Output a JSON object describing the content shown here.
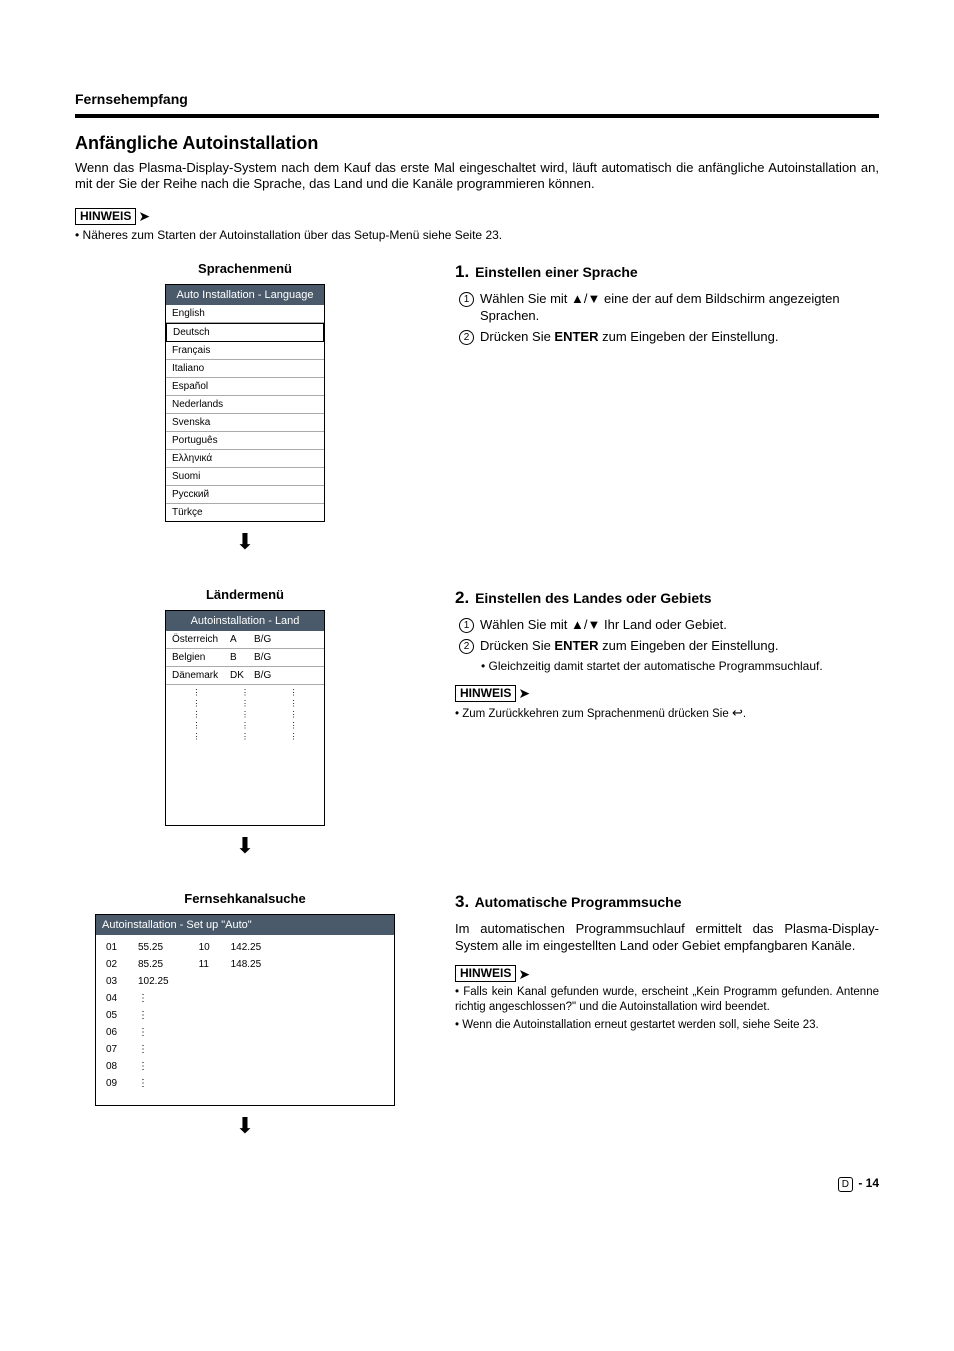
{
  "header": {
    "section": "Fernsehempfang",
    "title": "Anfängliche Autoinstallation",
    "intro": "Wenn das Plasma-Display-System nach dem Kauf das erste Mal eingeschaltet wird, läuft automatisch die anfängliche Autoinstallation an, mit der Sie der Reihe nach die Sprache, das Land und die Kanäle programmieren können."
  },
  "hinweis_label": "HINWEIS",
  "top_note": "• Näheres zum Starten der Autoinstallation über das Setup-Menü siehe Seite 23.",
  "language_menu": {
    "title": "Sprachenmenü",
    "header": "Auto Installation - Language",
    "items": [
      "English",
      "Deutsch",
      "Français",
      "Italiano",
      "Español",
      "Nederlands",
      "Svenska",
      "Português",
      "Ελληνικά",
      "Suomi",
      "Русский",
      "Türkçe"
    ],
    "selected_index": 1
  },
  "country_menu": {
    "title": "Ländermenü",
    "header": "Autoinstallation - Land",
    "rows": [
      {
        "name": "Österreich",
        "code": "A",
        "sys": "B/G"
      },
      {
        "name": "Belgien",
        "code": "B",
        "sys": "B/G"
      },
      {
        "name": "Dänemark",
        "code": "DK",
        "sys": "B/G"
      }
    ]
  },
  "channel_search": {
    "title": "Fernsehkanalsuche",
    "header": "Autoinstallation - Set up \"Auto\"",
    "col1": [
      {
        "ch": "01",
        "freq": "55.25"
      },
      {
        "ch": "02",
        "freq": "85.25"
      },
      {
        "ch": "03",
        "freq": "102.25"
      },
      {
        "ch": "04",
        "freq": ""
      },
      {
        "ch": "05",
        "freq": ""
      },
      {
        "ch": "06",
        "freq": ""
      },
      {
        "ch": "07",
        "freq": ""
      },
      {
        "ch": "08",
        "freq": ""
      },
      {
        "ch": "09",
        "freq": ""
      }
    ],
    "col2": [
      {
        "ch": "10",
        "freq": "142.25"
      },
      {
        "ch": "11",
        "freq": "148.25"
      }
    ]
  },
  "step1": {
    "num": "1.",
    "title": "Einstellen einer Sprache",
    "i1": "Wählen Sie mit ▲/▼ eine der auf dem Bildschirm angezeigten Sprachen.",
    "i2_pre": "Drücken Sie ",
    "i2_bold": "ENTER",
    "i2_post": " zum Eingeben der Einstellung."
  },
  "step2": {
    "num": "2.",
    "title": "Einstellen des Landes oder Gebiets",
    "i1": "Wählen Sie mit ▲/▼ Ihr Land oder Gebiet.",
    "i2_pre": "Drücken Sie ",
    "i2_bold": "ENTER",
    "i2_post": " zum Eingeben der Einstellung.",
    "bullet": "• Gleichzeitig damit startet der automatische Programmsuchlauf.",
    "note": "• Zum Zurückkehren zum Sprachenmenü drücken Sie "
  },
  "step3": {
    "num": "3.",
    "title": "Automatische Programmsuche",
    "para": "Im automatischen Programmsuchlauf ermittelt das Plasma-Display-System alle im eingestellten Land oder Gebiet empfangbaren Kanäle.",
    "note1": "• Falls kein Kanal gefunden wurde, erscheint „Kein Programm gefunden. Antenne richtig angeschlossen?\" und die Autoinstallation wird beendet.",
    "note2": "• Wenn die Autoinstallation erneut gestartet werden soll, siehe Seite 23."
  },
  "footer": {
    "lang": "D",
    "page": "- 14"
  }
}
